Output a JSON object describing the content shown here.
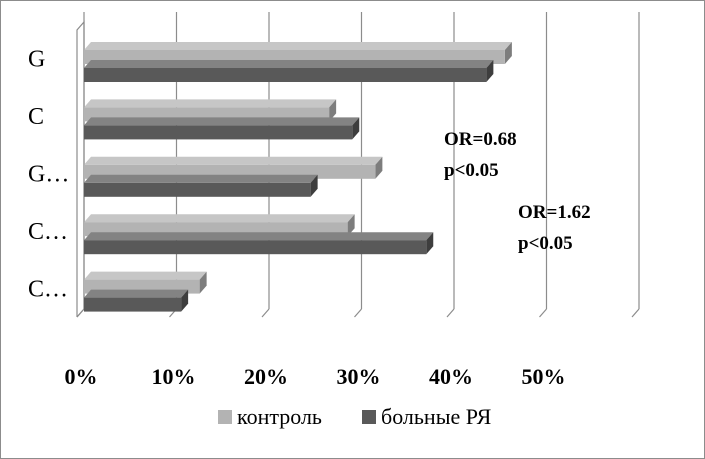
{
  "chart_data": {
    "type": "bar",
    "orientation": "horizontal",
    "style": "3d",
    "categories": [
      "G",
      "C",
      "G…",
      "C…",
      "C…"
    ],
    "series": [
      {
        "name": "контроль",
        "color": "#b3b3b3",
        "values": [
          45.5,
          26.5,
          31.5,
          28.5,
          12.5
        ]
      },
      {
        "name": "больные РЯ",
        "color": "#595959",
        "values": [
          43.5,
          29.0,
          24.5,
          37.0,
          10.5
        ]
      }
    ],
    "x_ticks": [
      "0%",
      "10%",
      "20%",
      "30%",
      "40%",
      "50%"
    ],
    "xlim": [
      0,
      58
    ],
    "grid": "vertical",
    "legend_position": "bottom",
    "annotations": [
      {
        "lines": [
          "OR=0.68",
          "p<0.05"
        ]
      },
      {
        "lines": [
          "OR=1.62",
          "p<0.05"
        ]
      }
    ]
  }
}
